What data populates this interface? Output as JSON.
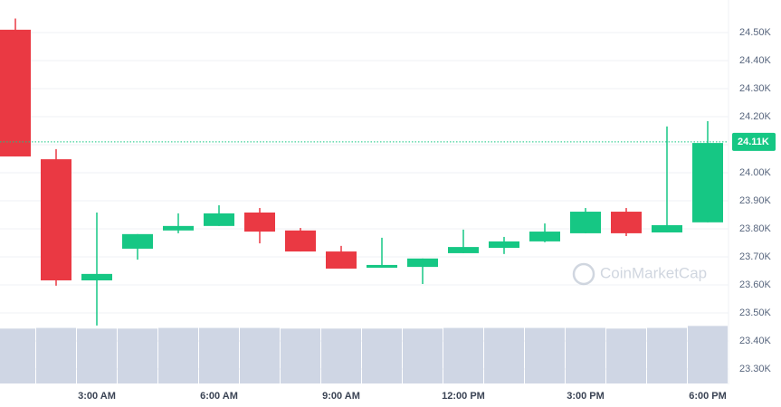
{
  "chart_data": {
    "type": "candlestick",
    "categories": [
      null,
      null,
      "3:00 AM",
      null,
      null,
      "6:00 AM",
      null,
      null,
      "9:00 AM",
      null,
      null,
      "12:00 PM",
      null,
      null,
      "3:00 PM",
      null,
      null,
      "6:00 PM"
    ],
    "open": [
      24510,
      24048,
      23616,
      23729,
      23794,
      23810,
      23858,
      23794,
      23719,
      23661,
      23664,
      23713,
      23732,
      23755,
      23784,
      23861,
      23787,
      23823
    ],
    "high": [
      24550,
      24084,
      23858,
      23781,
      23855,
      23884,
      23874,
      23803,
      23739,
      23768,
      23694,
      23797,
      23771,
      23819,
      23874,
      23874,
      24165,
      24184
    ],
    "low": [
      24058,
      23597,
      23455,
      23690,
      23784,
      23810,
      23748,
      23719,
      23658,
      23661,
      23603,
      23713,
      23710,
      23752,
      23784,
      23774,
      23787,
      23823
    ],
    "close": [
      24058,
      23616,
      23639,
      23781,
      23810,
      23855,
      23790,
      23719,
      23658,
      23671,
      23694,
      23735,
      23755,
      23790,
      23861,
      23784,
      23813,
      24106
    ],
    "up_color": "#16c784",
    "down_color": "#ea3943",
    "volume": {
      "values": [
        82,
        83,
        82,
        82,
        83,
        83,
        83,
        82,
        82,
        82,
        82,
        83,
        83,
        83,
        83,
        82,
        83,
        86
      ],
      "color": "#cfd6e4",
      "lim": [
        0,
        100
      ]
    },
    "ylim": [
      23245,
      24616
    ],
    "yticks": [
      {
        "value": 23300,
        "label": "23.30K"
      },
      {
        "value": 23400,
        "label": "23.40K"
      },
      {
        "value": 23500,
        "label": "23.50K"
      },
      {
        "value": 23600,
        "label": "23.60K"
      },
      {
        "value": 23700,
        "label": "23.70K"
      },
      {
        "value": 23800,
        "label": "23.80K"
      },
      {
        "value": 23900,
        "label": "23.90K"
      },
      {
        "value": 24000,
        "label": "24.00K"
      },
      {
        "value": 24100,
        "label": "24.10K"
      },
      {
        "value": 24200,
        "label": "24.20K"
      },
      {
        "value": 24300,
        "label": "24.30K"
      },
      {
        "value": 24400,
        "label": "24.40K"
      },
      {
        "value": 24500,
        "label": "24.50K"
      }
    ],
    "current_price": {
      "value": 24110,
      "value_label": "24.11K"
    },
    "grid": true,
    "watermark": "CoinMarketCap"
  }
}
